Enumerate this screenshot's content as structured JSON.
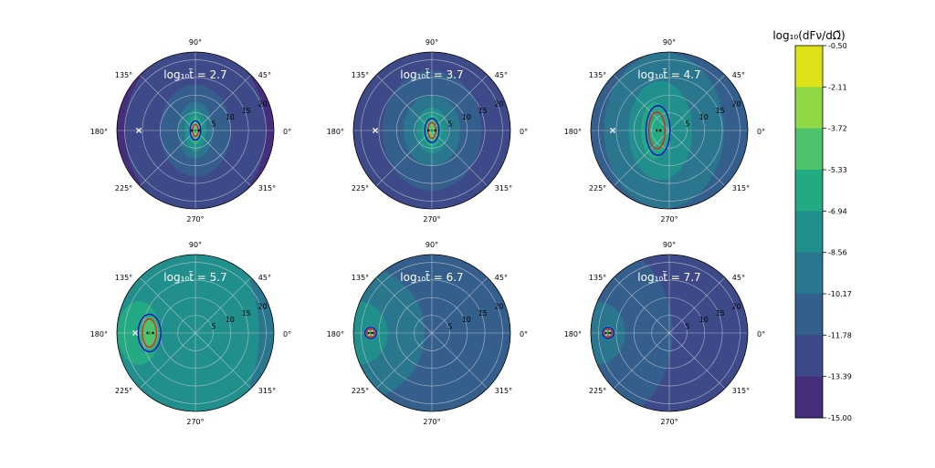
{
  "chart_data": {
    "type": "polar-contour",
    "panels": [
      {
        "label": "log₁₀t̃ = 2.7",
        "background_level": 1,
        "blobs": [
          [
            0.0,
            0,
            20,
            24,
            2
          ],
          [
            0.0,
            0,
            10,
            13,
            3
          ],
          [
            0.0,
            0,
            5,
            8,
            4
          ],
          [
            0.0,
            0,
            3,
            6,
            5
          ],
          [
            0.0,
            0,
            2,
            4,
            6
          ],
          [
            0.0,
            0,
            1.2,
            2.6,
            7
          ]
        ],
        "contours": [
          {
            "color": "blue",
            "r": 1.5,
            "ry": 2.7
          },
          {
            "color": "red",
            "r": 0.8,
            "ry": 1.7
          }
        ],
        "markers": {
          "cross_x": -16,
          "dot_x": 0,
          "star_x": -1,
          "plus_x": 1
        }
      },
      {
        "label": "log₁₀t̃ = 3.7",
        "background_level": 2,
        "blobs": [
          [
            0.0,
            0,
            14,
            17,
            3
          ],
          [
            0.0,
            0,
            8,
            10,
            4
          ],
          [
            0.0,
            0,
            4.5,
            6.5,
            5
          ],
          [
            0.0,
            0,
            2.8,
            4.5,
            6
          ],
          [
            0.0,
            0,
            1.4,
            2.8,
            7
          ]
        ],
        "contours": [
          {
            "color": "blue",
            "r": 2.0,
            "ry": 3.4
          },
          {
            "color": "red",
            "r": 1.1,
            "ry": 2.2
          }
        ],
        "markers": {
          "cross_x": -16,
          "dot_x": 0,
          "star_x": -1,
          "plus_x": 1
        }
      },
      {
        "label": "log₁₀t̃ = 4.7",
        "background_level": 3,
        "blobs": [
          [
            -1.5,
            0,
            17,
            22,
            4
          ],
          [
            -2.5,
            0,
            9,
            14,
            5
          ],
          [
            -4.0,
            0,
            4,
            8,
            6
          ]
        ],
        "contours": [
          {
            "color": "blue",
            "cx": -3.2,
            "r": 3.4,
            "ry": 7.0
          },
          {
            "color": "red",
            "cx": -3.5,
            "r": 2.3,
            "ry": 5.2
          }
        ],
        "markers": {
          "cross_x": -16,
          "dot_x": -3,
          "star_x": -3.5,
          "plus_x": -2.5
        }
      },
      {
        "label": "log₁₀t̃ = 5.7",
        "background_level": 4,
        "blobs": [
          [
            -22,
            0,
            40,
            42,
            5
          ],
          [
            -16,
            0,
            6,
            9,
            6
          ],
          [
            -13,
            0,
            2.5,
            4.5,
            7
          ]
        ],
        "contours": [
          {
            "color": "blue",
            "cx": -13,
            "r": 3.2,
            "ry": 5.3
          },
          {
            "color": "red",
            "cx": -13,
            "r": 2.0,
            "ry": 4.0
          }
        ],
        "markers": {
          "cross_x": -17,
          "dot_x": -13,
          "star_x": -13.5,
          "plus_x": -12
        }
      },
      {
        "label": "log₁₀t̃ = 6.7",
        "background_level": 3,
        "blobs": [
          [
            -21,
            0,
            19,
            19,
            4
          ],
          [
            -21,
            0,
            8.5,
            9,
            5
          ],
          [
            -17.3,
            0,
            1.8,
            1.9,
            7
          ]
        ],
        "contours": [
          {
            "color": "blue",
            "cx": -17.3,
            "r": 1.6,
            "ry": 1.6
          },
          {
            "color": "red",
            "cx": -17.3,
            "r": 1.1,
            "ry": 1.1
          }
        ],
        "markers": {
          "cross_x": -17.3,
          "dot_x": -17.3,
          "star_x": -17.8,
          "plus_x": -16.8
        }
      },
      {
        "label": "log₁₀t̃ = 7.7",
        "background_level": 2,
        "blobs": [
          [
            -23,
            0,
            24,
            27,
            3
          ],
          [
            -21,
            0,
            8.5,
            9,
            4
          ],
          [
            -17.3,
            0,
            1.9,
            2.0,
            6
          ]
        ],
        "contours": [
          {
            "color": "blue",
            "cx": -17.3,
            "r": 1.6,
            "ry": 1.6
          },
          {
            "color": "red",
            "cx": -17.3,
            "r": 1.1,
            "ry": 1.1
          }
        ],
        "markers": {
          "cross_x": -17.3,
          "dot_x": -17.3,
          "star_x": -17.8,
          "plus_x": -16.8
        }
      }
    ],
    "angle_ticks": [
      "0°",
      "45°",
      "90°",
      "135°",
      "180°",
      "225°",
      "270°",
      "315°"
    ],
    "radial_ticks": [
      "5",
      "10",
      "15",
      "20"
    ],
    "radial_values": [
      5,
      10,
      15,
      20
    ],
    "rmax": 22.2,
    "colorbar": {
      "label": "log₁₀(dFν/dΩ̃)",
      "levels": [
        "-0.50",
        "-2.11",
        "-3.72",
        "-5.33",
        "-6.94",
        "-8.56",
        "-10.17",
        "-11.78",
        "-13.39",
        "-15.00"
      ],
      "colors": [
        "#dde318",
        "#8fd744",
        "#4cc26c",
        "#24aa83",
        "#21908d",
        "#2a768e",
        "#345f8d",
        "#3e4989",
        "#472e7c",
        "#440f56"
      ]
    },
    "contour_colors": {
      "blue": "#1010c8",
      "red": "#e02020"
    },
    "grid_color": "#d0d0d0"
  }
}
